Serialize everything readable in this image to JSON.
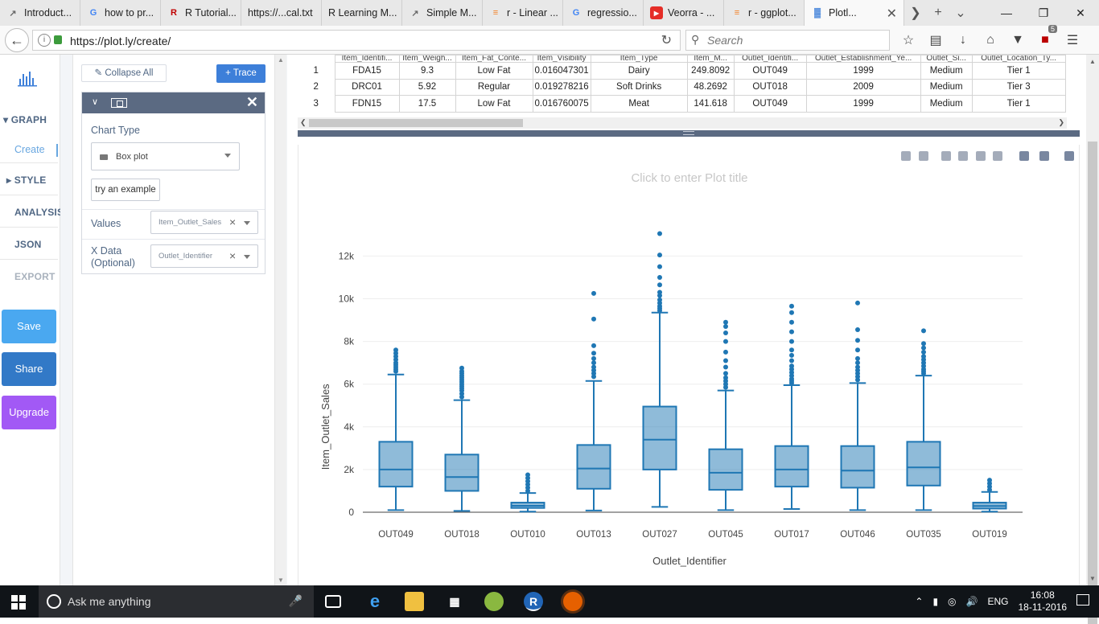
{
  "browser": {
    "tabs": [
      {
        "label": "Introduct...",
        "icon": "chart-favicon",
        "color": "#6a6a6a"
      },
      {
        "label": "how to pr...",
        "icon": "google-favicon",
        "color": "#4285f4"
      },
      {
        "label": "R Tutorial...",
        "icon": "r-favicon",
        "color": "#c00000"
      },
      {
        "label": "https://...cal.txt",
        "icon": "",
        "color": "#333333"
      },
      {
        "label": "R Learning M...",
        "icon": "",
        "color": "#333333"
      },
      {
        "label": "Simple M...",
        "icon": "chart-favicon",
        "color": "#6a6a6a"
      },
      {
        "label": "r - Linear ...",
        "icon": "stackoverflow-favicon",
        "color": "#f48024"
      },
      {
        "label": "regressio...",
        "icon": "google-favicon",
        "color": "#4285f4"
      },
      {
        "label": "Veorra - ...",
        "icon": "youtube-favicon",
        "color": "#e52d27"
      },
      {
        "label": "r - ggplot...",
        "icon": "stackoverflow-favicon",
        "color": "#f48024"
      },
      {
        "label": "Plotl...",
        "icon": "plotly-favicon",
        "color": "#3d7fd9"
      }
    ],
    "url": "https://plot.ly/create/",
    "search_placeholder": "Search",
    "badge_count": "5"
  },
  "leftnav": {
    "graph": "GRAPH",
    "create": "Create",
    "style": "STYLE",
    "analysis": "ANALYSIS",
    "json": "JSON",
    "export": "EXPORT",
    "save": "Save",
    "share": "Share",
    "upgrade": "Upgrade",
    "colors": {
      "save": "#4aa8f0",
      "share": "#3279c7",
      "upgrade": "#a259f5"
    }
  },
  "panel": {
    "collapse_all": "Collapse All",
    "add_trace": "+ Trace",
    "chart_type_label": "Chart Type",
    "chart_type_value": "Box plot",
    "try_example": "try an example",
    "values_label": "Values",
    "values_value": "Item_Outlet_Sales",
    "xdata_label": "X Data",
    "xdata_optional": "(Optional)",
    "xdata_value": "Outlet_Identifier"
  },
  "grid": {
    "headers": [
      "Item_Identifi...",
      "Item_Weigh...",
      "Item_Fat_Conte...",
      "Item_Visibility",
      "Item_Type",
      "Item_M...",
      "Outlet_Identifi...",
      "Outlet_Establishment_Ye...",
      "Outlet_Si...",
      "Outlet_Location_Ty..."
    ],
    "rows": [
      {
        "n": "1",
        "cells": [
          "FDA15",
          "9.3",
          "Low Fat",
          "0.016047301",
          "Dairy",
          "249.8092",
          "OUT049",
          "1999",
          "Medium",
          "Tier 1"
        ]
      },
      {
        "n": "2",
        "cells": [
          "DRC01",
          "5.92",
          "Regular",
          "0.019278216",
          "Soft Drinks",
          "48.2692",
          "OUT018",
          "2009",
          "Medium",
          "Tier 3"
        ]
      },
      {
        "n": "3",
        "cells": [
          "FDN15",
          "17.5",
          "Low Fat",
          "0.016760075",
          "Meat",
          "141.618",
          "OUT049",
          "1999",
          "Medium",
          "Tier 1"
        ]
      }
    ]
  },
  "plot": {
    "title_placeholder": "Click to enter Plot title",
    "modebar": [
      "zoom-icon",
      "pan-icon",
      "zoom-in-icon",
      "zoom-out-icon",
      "autoscale-icon",
      "reset-axes-icon",
      "hover-closest-icon",
      "hover-compare-icon",
      "plotly-logo-icon"
    ]
  },
  "chart_data": {
    "type": "box",
    "title": "",
    "xlabel": "Outlet_Identifier",
    "ylabel": "Item_Outlet_Sales",
    "ylim": [
      -400,
      13300
    ],
    "yticks": [
      0,
      2000,
      4000,
      6000,
      8000,
      10000,
      12000
    ],
    "ytick_labels": [
      "0",
      "2k",
      "4k",
      "6k",
      "8k",
      "10k",
      "12k"
    ],
    "color": "#1f77b4",
    "grid": true,
    "categories": [
      "OUT049",
      "OUT018",
      "OUT010",
      "OUT013",
      "OUT027",
      "OUT045",
      "OUT017",
      "OUT046",
      "OUT035",
      "OUT019"
    ],
    "boxes": [
      {
        "min": 100,
        "q1": 1200,
        "median": 2000,
        "q3": 3300,
        "max": 6450,
        "outliers": [
          6600,
          6700,
          6800,
          6900,
          7000,
          7150,
          7300,
          7450,
          7600
        ]
      },
      {
        "min": 60,
        "q1": 1000,
        "median": 1650,
        "q3": 2700,
        "max": 5250,
        "outliers": [
          5400,
          5550,
          5700,
          5800,
          5900,
          6000,
          6100,
          6200,
          6300,
          6400,
          6500,
          6600,
          6750
        ]
      },
      {
        "min": 30,
        "q1": 200,
        "median": 300,
        "q3": 450,
        "max": 900,
        "outliers": [
          1000,
          1150,
          1300,
          1450,
          1600,
          1750
        ]
      },
      {
        "min": 80,
        "q1": 1100,
        "median": 2050,
        "q3": 3150,
        "max": 6150,
        "outliers": [
          6350,
          6500,
          6650,
          6800,
          7000,
          7200,
          7450,
          7800,
          9050,
          10250
        ]
      },
      {
        "min": 250,
        "q1": 2000,
        "median": 3400,
        "q3": 4950,
        "max": 9350,
        "outliers": [
          9450,
          9550,
          9650,
          9800,
          9950,
          10150,
          10300,
          10650,
          11000,
          11500,
          12050,
          13050
        ]
      },
      {
        "min": 100,
        "q1": 1050,
        "median": 1850,
        "q3": 2950,
        "max": 5700,
        "outliers": [
          5850,
          6000,
          6150,
          6300,
          6500,
          6800,
          7100,
          7500,
          8000,
          8400,
          8700,
          8900
        ]
      },
      {
        "min": 150,
        "q1": 1200,
        "median": 2000,
        "q3": 3100,
        "max": 5950,
        "outliers": [
          6050,
          6150,
          6250,
          6400,
          6550,
          6700,
          6850,
          7100,
          7350,
          7600,
          8000,
          8450,
          8900,
          9350,
          9650
        ]
      },
      {
        "min": 100,
        "q1": 1150,
        "median": 1950,
        "q3": 3100,
        "max": 6050,
        "outliers": [
          6200,
          6350,
          6500,
          6650,
          6800,
          7000,
          7200,
          7600,
          8050,
          8550,
          9800
        ]
      },
      {
        "min": 100,
        "q1": 1250,
        "median": 2100,
        "q3": 3300,
        "max": 6400,
        "outliers": [
          6500,
          6600,
          6700,
          6850,
          7000,
          7150,
          7300,
          7500,
          7700,
          7900,
          8500
        ]
      },
      {
        "min": 30,
        "q1": 170,
        "median": 290,
        "q3": 450,
        "max": 950,
        "outliers": [
          1050,
          1200,
          1350,
          1500
        ]
      }
    ]
  },
  "taskbar": {
    "search": "Ask me anything",
    "lang": "ENG",
    "time": "16:08",
    "date": "18-11-2016"
  }
}
